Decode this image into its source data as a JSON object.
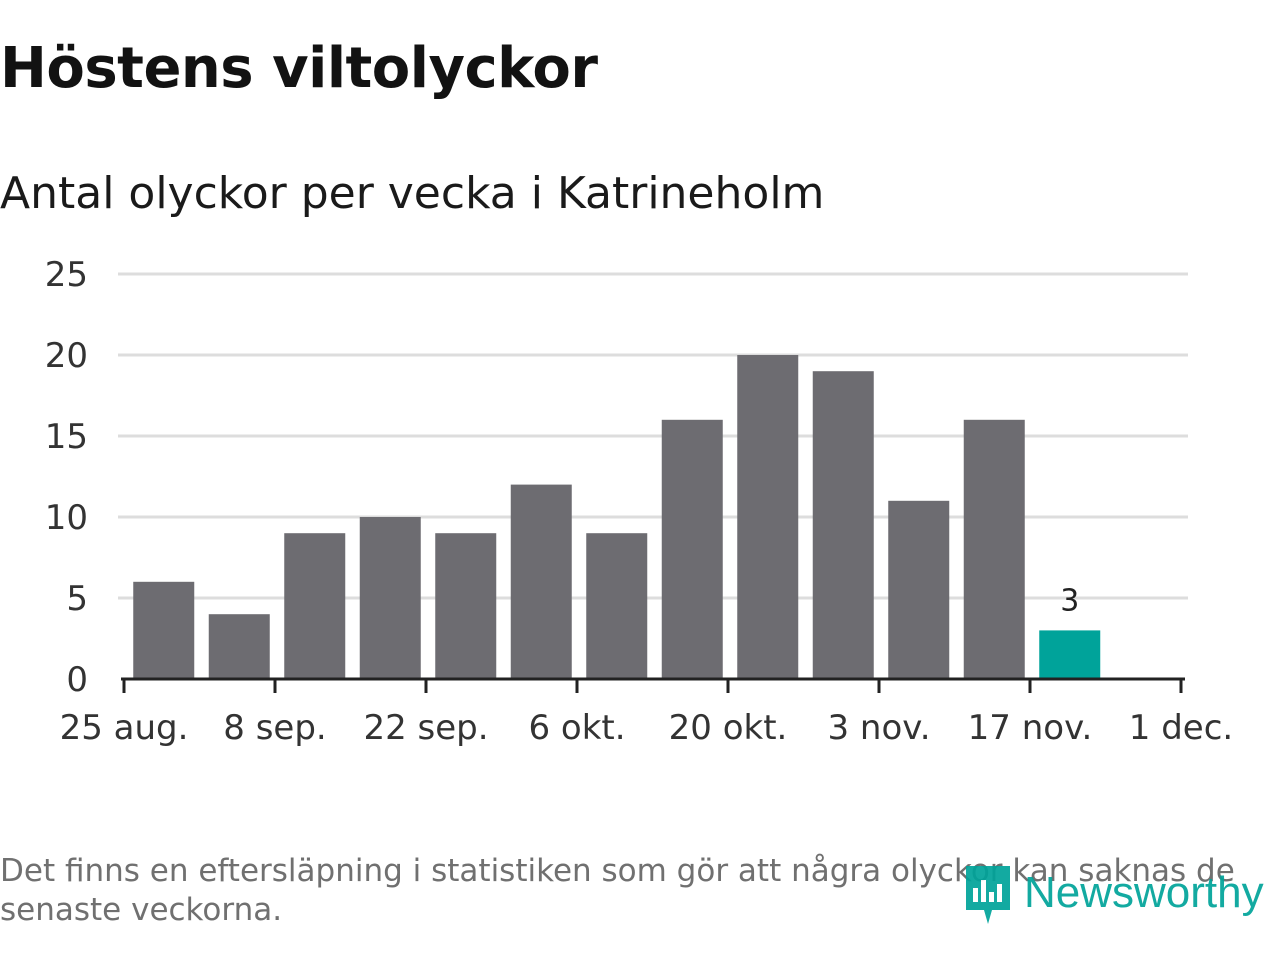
{
  "header": {
    "title": "Höstens viltolyckor",
    "subtitle": "Antal olyckor per vecka i Katrineholm"
  },
  "chart_data": {
    "type": "bar",
    "title": "Höstens viltolyckor",
    "subtitle": "Antal olyckor per vecka i Katrineholm",
    "xlabel": "",
    "ylabel": "",
    "ylim": [
      0,
      25
    ],
    "yticks": [
      0,
      5,
      10,
      15,
      20,
      25
    ],
    "grid": true,
    "x_tick_labels": [
      "25 aug.",
      "8 sep.",
      "22 sep.",
      "6 okt.",
      "20 okt.",
      "3 nov.",
      "17 nov.",
      "1 dec."
    ],
    "values": [
      6,
      4,
      9,
      10,
      9,
      12,
      9,
      16,
      20,
      19,
      11,
      16,
      3
    ],
    "bar_colors": [
      "#6d6c71",
      "#6d6c71",
      "#6d6c71",
      "#6d6c71",
      "#6d6c71",
      "#6d6c71",
      "#6d6c71",
      "#6d6c71",
      "#6d6c71",
      "#6d6c71",
      "#6d6c71",
      "#6d6c71",
      "#00a39a"
    ],
    "data_labels": [
      null,
      null,
      null,
      null,
      null,
      null,
      null,
      null,
      null,
      null,
      null,
      null,
      "3"
    ]
  },
  "colors": {
    "bar": "#6d6c71",
    "highlight": "#00a39a",
    "grid": "#dddddd",
    "axis": "#222222"
  },
  "footnote": "Det finns en eftersläpning i statistiken som gör att några olyckor kan saknas de senaste veckorna.",
  "logo": {
    "text": "Newsworthy",
    "icon": "newsworthy-logo-icon"
  }
}
